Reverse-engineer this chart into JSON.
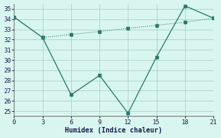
{
  "xlabel": "Humidex (Indice chaleur)",
  "line1_x": [
    0,
    3,
    6,
    9,
    12,
    15,
    18,
    21
  ],
  "line1_y": [
    34.2,
    32.2,
    26.6,
    28.5,
    24.8,
    30.3,
    35.3,
    34.1
  ],
  "line2_x": [
    0,
    3,
    6,
    9,
    12,
    15,
    18,
    21
  ],
  "line2_y": [
    34.2,
    32.2,
    32.5,
    32.8,
    33.1,
    33.4,
    33.7,
    34.1
  ],
  "line_color": "#2a7a6e",
  "bg_color": "#d8f5ef",
  "grid_color": "#aacfc5",
  "xlim": [
    0,
    21
  ],
  "ylim": [
    24.5,
    35.5
  ],
  "xticks": [
    0,
    3,
    6,
    9,
    12,
    15,
    18,
    21
  ],
  "yticks": [
    25,
    26,
    27,
    28,
    29,
    30,
    31,
    32,
    33,
    34,
    35
  ],
  "markersize": 2.5,
  "tick_fontsize": 6.5,
  "xlabel_fontsize": 7
}
